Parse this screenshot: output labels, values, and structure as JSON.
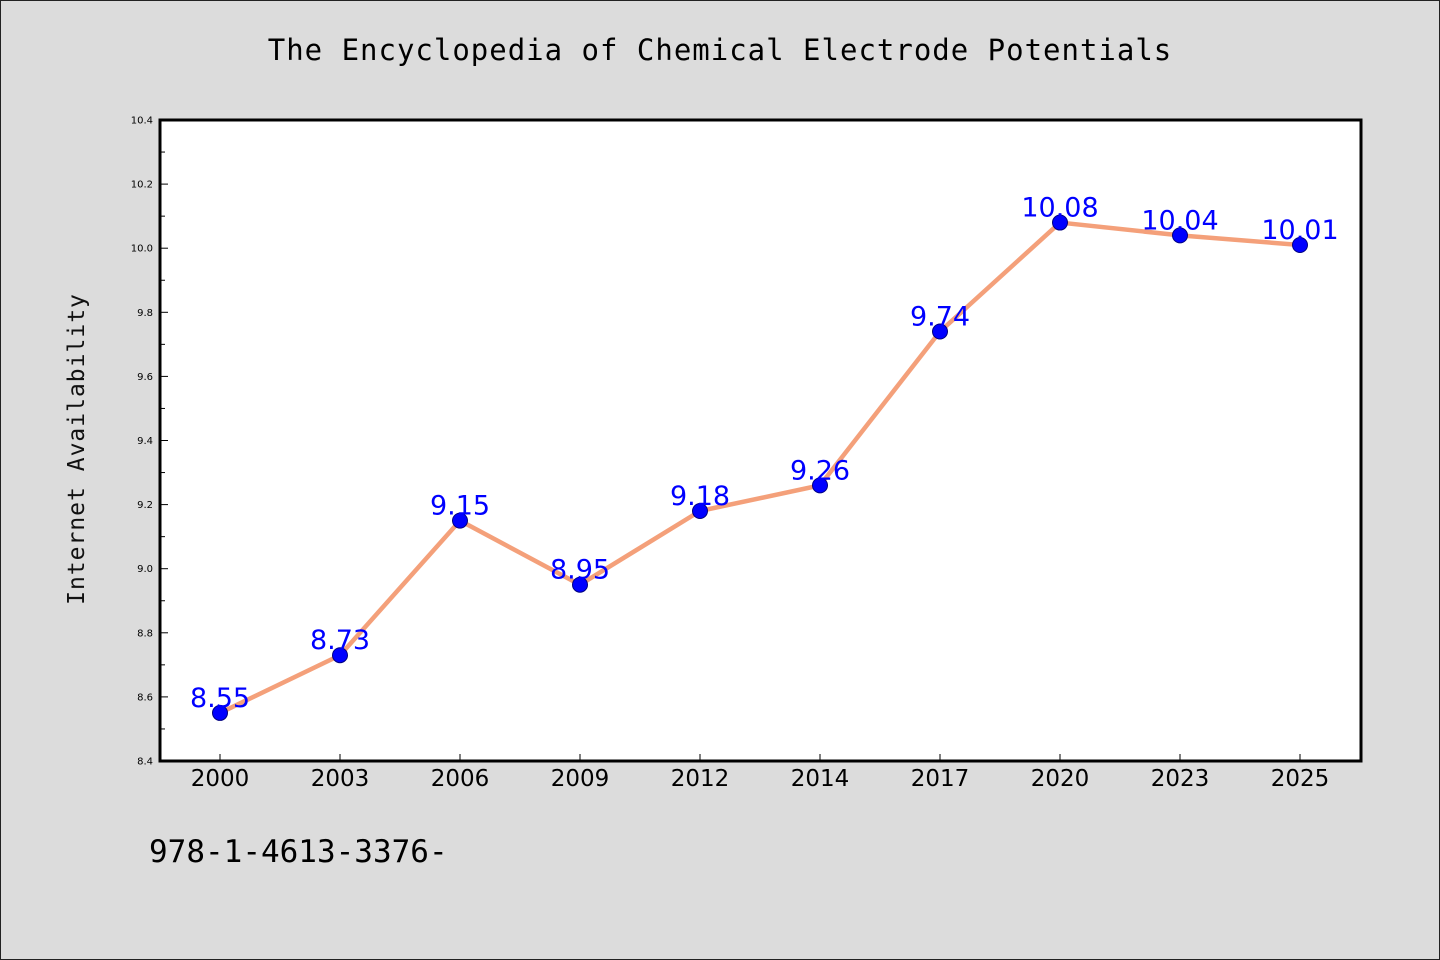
{
  "chart_data": {
    "type": "line",
    "title": "The Encyclopedia of Chemical Electrode Potentials",
    "ylabel": "Internet Availability",
    "xlabel": "",
    "categories": [
      "2000",
      "2003",
      "2006",
      "2009",
      "2012",
      "2014",
      "2017",
      "2020",
      "2023",
      "2025"
    ],
    "values": [
      8.55,
      8.73,
      9.15,
      8.95,
      9.18,
      9.26,
      9.74,
      10.08,
      10.04,
      10.01
    ],
    "data_labels": [
      "8.55",
      "8.73",
      "9.15",
      "8.95",
      "9.18",
      "9.26",
      "9.74",
      "10.08",
      "10.04",
      "10.01"
    ],
    "ylim": [
      8.4,
      10.4
    ],
    "y_ticks": [
      "8.4",
      "8.6",
      "8.8",
      "9.0",
      "9.2",
      "9.4",
      "9.6",
      "9.8",
      "10.0",
      "10.2",
      "10.4"
    ],
    "grid": false,
    "legend": "none",
    "colors": {
      "line": "#f4a07a",
      "marker": "#0000ff",
      "marker_edge": "#000080",
      "data_label": "#0000ff",
      "background": "#dcdcdc",
      "plot_area": "#ffffff"
    }
  },
  "footer_text": "978-1-4613-3376-"
}
